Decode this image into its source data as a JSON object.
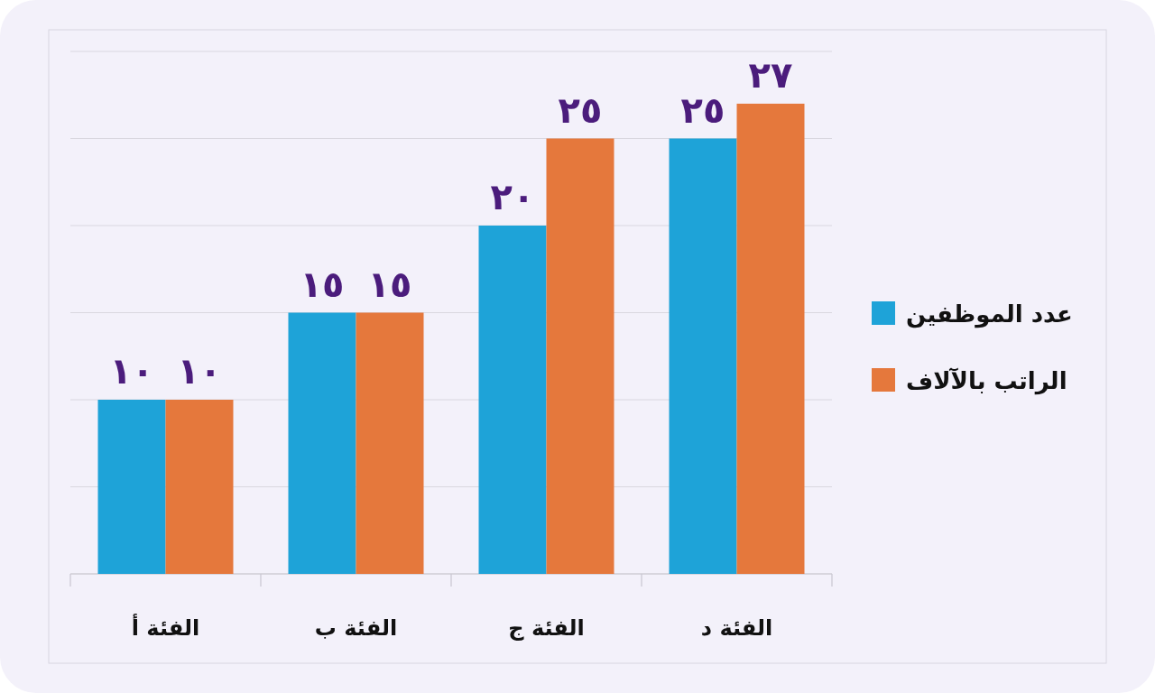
{
  "chart_data": {
    "type": "bar",
    "categories": [
      "الفئة أ",
      "الفئة ب",
      "الفئة ج",
      "الفئة د"
    ],
    "series": [
      {
        "name": "عدد الموظفين",
        "color": "#1ea3d8",
        "values": [
          10,
          15,
          20,
          25
        ],
        "value_labels": [
          "١٠",
          "١٥",
          "٢٠",
          "٢٥"
        ]
      },
      {
        "name": "الراتب بالآلاف",
        "color": "#e5783c",
        "values": [
          10,
          15,
          25,
          27
        ],
        "value_labels": [
          "١٠",
          "١٥",
          "٢٥",
          "٢٧"
        ]
      }
    ],
    "ylim": [
      0,
      30
    ],
    "yticks": [
      {
        "value": 0,
        "label": null
      },
      {
        "value": 5,
        "label": null
      },
      {
        "value": 10,
        "label": null
      },
      {
        "value": 15,
        "label": null
      },
      {
        "value": 20,
        "label": null
      },
      {
        "value": 25,
        "label": null
      },
      {
        "value": 30,
        "label": null
      }
    ],
    "grid": "y",
    "legend": "right",
    "tick_labels": "x"
  }
}
